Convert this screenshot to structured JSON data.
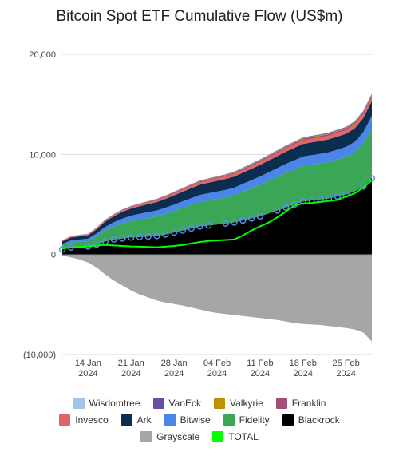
{
  "chart_data": {
    "type": "area",
    "title": "Bitcoin Spot ETF Cumulative Flow (US$m)",
    "ylim": [
      -10000,
      20000
    ],
    "y_ticks": [
      {
        "value": 20000,
        "label": "20,000"
      },
      {
        "value": 10000,
        "label": "10,000"
      },
      {
        "value": 0,
        "label": "0"
      },
      {
        "value": -10000,
        "label": "(10,000)"
      }
    ],
    "x_ticks": [
      {
        "x": 3,
        "label": [
          "14 Jan",
          "2024"
        ]
      },
      {
        "x": 8,
        "label": [
          "21 Jan",
          "2024"
        ]
      },
      {
        "x": 13,
        "label": [
          "28 Jan",
          "2024"
        ]
      },
      {
        "x": 18,
        "label": [
          "04 Feb",
          "2024"
        ]
      },
      {
        "x": 23,
        "label": [
          "11 Feb",
          "2024"
        ]
      },
      {
        "x": 28,
        "label": [
          "18 Feb",
          "2024"
        ]
      },
      {
        "x": 33,
        "label": [
          "25 Feb",
          "2024"
        ]
      }
    ],
    "x": [
      0,
      1,
      2,
      3,
      4,
      5,
      6,
      7,
      8,
      9,
      10,
      11,
      12,
      13,
      14,
      15,
      16,
      17,
      18,
      19,
      20,
      21,
      22,
      23,
      24,
      25,
      26,
      27,
      28,
      29,
      30,
      31,
      32,
      33,
      34,
      35,
      36
    ],
    "series": [
      {
        "name": "Blackrock",
        "color": "#000000",
        "values": [
          500,
          700,
          750,
          800,
          1000,
          1300,
          1500,
          1600,
          1700,
          1750,
          1800,
          1850,
          2000,
          2200,
          2400,
          2600,
          2800,
          2900,
          3000,
          3100,
          3200,
          3400,
          3600,
          3800,
          4100,
          4400,
          4700,
          5000,
          5300,
          5400,
          5500,
          5600,
          5800,
          6000,
          6300,
          6800,
          7600
        ]
      },
      {
        "name": "Fidelity",
        "color": "#3aa757",
        "values": [
          400,
          500,
          520,
          540,
          800,
          1100,
          1300,
          1500,
          1650,
          1750,
          1850,
          1950,
          2050,
          2150,
          2250,
          2350,
          2450,
          2500,
          2550,
          2600,
          2700,
          2850,
          3000,
          3150,
          3250,
          3350,
          3450,
          3500,
          3550,
          3580,
          3600,
          3650,
          3700,
          3750,
          3900,
          4300,
          5000
        ]
      },
      {
        "name": "Bitwise",
        "color": "#4a86e8",
        "values": [
          150,
          200,
          220,
          240,
          300,
          360,
          420,
          480,
          520,
          560,
          580,
          600,
          620,
          640,
          660,
          680,
          700,
          720,
          740,
          760,
          780,
          800,
          820,
          840,
          860,
          880,
          900,
          920,
          940,
          950,
          960,
          970,
          980,
          1000,
          1050,
          1120,
          1250
        ]
      },
      {
        "name": "Ark",
        "color": "#0b2d4f",
        "values": [
          250,
          300,
          320,
          330,
          420,
          520,
          600,
          680,
          720,
          760,
          800,
          840,
          880,
          920,
          960,
          1000,
          1020,
          1040,
          1060,
          1080,
          1100,
          1120,
          1140,
          1160,
          1180,
          1200,
          1220,
          1240,
          1260,
          1270,
          1280,
          1290,
          1300,
          1310,
          1350,
          1400,
          1480
        ]
      },
      {
        "name": "Invesco",
        "color": "#e06666",
        "values": [
          80,
          90,
          95,
          100,
          110,
          120,
          130,
          140,
          150,
          160,
          170,
          180,
          190,
          200,
          210,
          220,
          230,
          240,
          250,
          260,
          270,
          280,
          290,
          300,
          310,
          320,
          330,
          340,
          350,
          355,
          360,
          365,
          370,
          375,
          380,
          390,
          400
        ]
      },
      {
        "name": "Franklin",
        "color": "#a64d79",
        "values": [
          20,
          25,
          28,
          30,
          35,
          40,
          45,
          50,
          55,
          60,
          65,
          70,
          75,
          80,
          85,
          90,
          95,
          100,
          105,
          110,
          115,
          120,
          125,
          130,
          135,
          140,
          145,
          150,
          155,
          158,
          160,
          162,
          164,
          166,
          170,
          175,
          180
        ]
      },
      {
        "name": "Valkyrie",
        "color": "#bf9000",
        "values": [
          10,
          12,
          14,
          16,
          18,
          20,
          22,
          24,
          26,
          28,
          30,
          32,
          34,
          36,
          38,
          40,
          42,
          44,
          46,
          48,
          50,
          52,
          54,
          56,
          58,
          60,
          62,
          64,
          66,
          67,
          68,
          69,
          70,
          71,
          72,
          74,
          76
        ]
      },
      {
        "name": "VanEck",
        "color": "#674ea7",
        "values": [
          10,
          12,
          14,
          16,
          18,
          20,
          22,
          24,
          26,
          28,
          30,
          32,
          34,
          36,
          38,
          40,
          42,
          44,
          46,
          48,
          50,
          52,
          54,
          56,
          58,
          60,
          62,
          64,
          66,
          67,
          68,
          69,
          70,
          71,
          72,
          74,
          76
        ]
      },
      {
        "name": "Wisdomtree",
        "color": "#9fc5e8",
        "values": [
          5,
          6,
          7,
          8,
          9,
          10,
          11,
          12,
          13,
          14,
          15,
          16,
          17,
          18,
          19,
          20,
          21,
          22,
          23,
          24,
          25,
          26,
          27,
          28,
          29,
          30,
          31,
          32,
          33,
          34,
          35,
          36,
          37,
          38,
          39,
          40,
          41
        ]
      },
      {
        "name": "Grayscale",
        "color": "#a6a6a6",
        "values": [
          -100,
          -300,
          -500,
          -800,
          -1300,
          -2000,
          -2600,
          -3100,
          -3600,
          -4000,
          -4300,
          -4600,
          -4800,
          -4950,
          -5100,
          -5300,
          -5500,
          -5700,
          -5850,
          -5950,
          -6050,
          -6150,
          -6250,
          -6350,
          -6450,
          -6550,
          -6700,
          -6850,
          -6950,
          -7000,
          -7050,
          -7150,
          -7250,
          -7350,
          -7500,
          -7800,
          -8700
        ]
      },
      {
        "name": "TOTAL",
        "color": "#00ff00",
        "values": [
          600,
          700,
          750,
          800,
          900,
          950,
          900,
          850,
          800,
          780,
          750,
          720,
          780,
          850,
          950,
          1100,
          1250,
          1350,
          1400,
          1450,
          1500,
          1900,
          2400,
          2800,
          3200,
          3700,
          4300,
          4900,
          5100,
          5150,
          5250,
          5350,
          5450,
          5800,
          6100,
          6700,
          7400
        ]
      }
    ],
    "blackrock_markers": [
      0,
      1,
      3,
      4,
      5,
      6,
      7,
      8,
      9,
      10,
      11,
      12,
      13,
      14,
      15,
      16,
      17,
      19,
      20,
      21,
      22,
      23,
      25,
      26,
      27,
      28,
      29,
      30,
      31,
      32,
      33,
      35,
      36
    ],
    "legend": [
      [
        "Wisdomtree",
        "VanEck",
        "Valkyrie",
        "Franklin"
      ],
      [
        "Invesco",
        "Ark",
        "Bitwise",
        "Fidelity",
        "Blackrock"
      ],
      [
        "Grayscale",
        "TOTAL"
      ]
    ]
  }
}
